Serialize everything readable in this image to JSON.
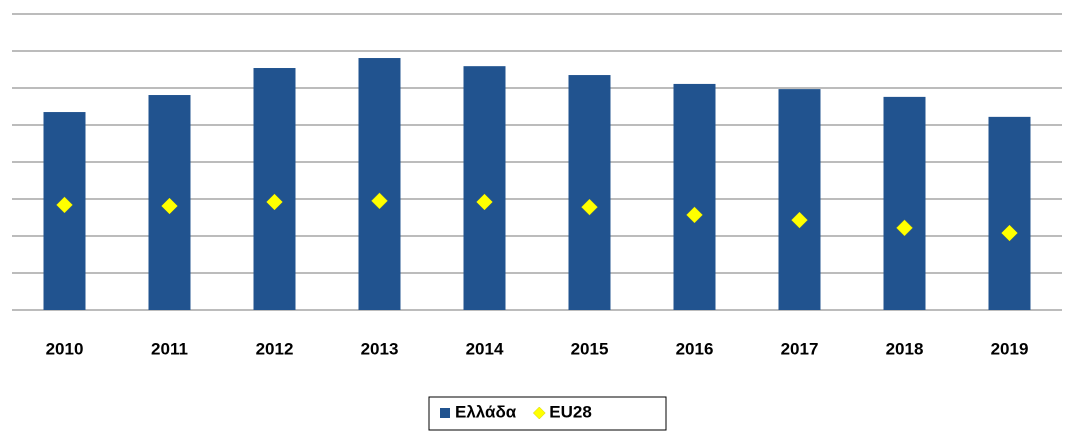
{
  "chart_data": {
    "type": "bar",
    "categories": [
      "2010",
      "2011",
      "2012",
      "2013",
      "2014",
      "2015",
      "2016",
      "2017",
      "2018",
      "2019"
    ],
    "series": [
      {
        "name": "Ελλάδα",
        "color": "#21538f",
        "values": [
          5.35,
          5.81,
          6.54,
          6.81,
          6.59,
          6.35,
          6.11,
          5.97,
          5.76,
          5.22
        ]
      },
      {
        "name": "EU28",
        "color": "#ffff00",
        "marker": "diamond",
        "values": [
          2.84,
          2.81,
          2.92,
          2.95,
          2.92,
          2.78,
          2.57,
          2.43,
          2.22,
          2.08
        ]
      }
    ],
    "ylim": [
      0,
      8
    ],
    "yticks": [
      0,
      1,
      2,
      3,
      4,
      5,
      6,
      7,
      8
    ],
    "grid": true,
    "legend": "bottom"
  }
}
